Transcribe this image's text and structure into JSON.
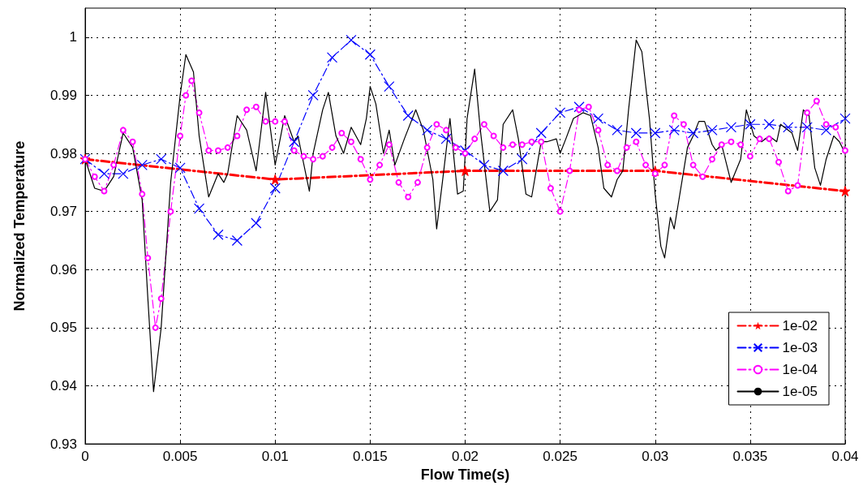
{
  "chart_data": {
    "type": "line",
    "xlabel": "Flow Time(s)",
    "ylabel": "Normalized Temperature",
    "xlim": [
      0,
      0.04
    ],
    "xticks": [
      0,
      0.005,
      0.01,
      0.015,
      0.02,
      0.025,
      0.03,
      0.035,
      0.04
    ],
    "ylim": [
      0.93,
      1.005
    ],
    "yticks": [
      0.93,
      0.94,
      0.95,
      0.96,
      0.97,
      0.98,
      0.99,
      1
    ],
    "grid": true,
    "legend": "bottom right",
    "series": [
      {
        "name": "1e-02",
        "color": "#ff0000",
        "marker": "star",
        "line_style": "dashed",
        "x": [
          0,
          0.01,
          0.02,
          0.03,
          0.04
        ],
        "values": [
          0.979,
          0.9755,
          0.977,
          0.977,
          0.9735
        ]
      },
      {
        "name": "1e-03",
        "color": "#0000ff",
        "marker": "cross",
        "line_style": "dashed",
        "x": [
          0,
          0.001,
          0.002,
          0.003,
          0.004,
          0.005,
          0.006,
          0.007,
          0.008,
          0.009,
          0.01,
          0.011,
          0.012,
          0.013,
          0.014,
          0.015,
          0.016,
          0.017,
          0.018,
          0.019,
          0.02,
          0.021,
          0.022,
          0.023,
          0.024,
          0.025,
          0.026,
          0.027,
          0.028,
          0.029,
          0.03,
          0.031,
          0.032,
          0.033,
          0.034,
          0.035,
          0.036,
          0.037,
          0.038,
          0.039,
          0.04
        ],
        "values": [
          0.979,
          0.9765,
          0.9765,
          0.978,
          0.979,
          0.9775,
          0.9705,
          0.966,
          0.965,
          0.968,
          0.974,
          0.982,
          0.99,
          0.9965,
          0.9995,
          0.997,
          0.9915,
          0.9865,
          0.984,
          0.9825,
          0.9805,
          0.978,
          0.977,
          0.979,
          0.9835,
          0.987,
          0.988,
          0.986,
          0.984,
          0.9835,
          0.9835,
          0.984,
          0.9835,
          0.984,
          0.9845,
          0.985,
          0.985,
          0.9845,
          0.9845,
          0.984,
          0.986
        ]
      },
      {
        "name": "1e-04",
        "color": "#ff00ff",
        "marker": "circle",
        "line_style": "dashed",
        "x": [
          0,
          0.0005,
          0.001,
          0.0015,
          0.002,
          0.0025,
          0.003,
          0.0033,
          0.0037,
          0.004,
          0.0045,
          0.005,
          0.0053,
          0.0056,
          0.006,
          0.0065,
          0.007,
          0.0075,
          0.008,
          0.0085,
          0.009,
          0.0095,
          0.01,
          0.0105,
          0.011,
          0.0115,
          0.012,
          0.0125,
          0.013,
          0.0135,
          0.014,
          0.0145,
          0.015,
          0.0155,
          0.016,
          0.0165,
          0.017,
          0.0175,
          0.018,
          0.0185,
          0.019,
          0.0195,
          0.02,
          0.0205,
          0.021,
          0.0215,
          0.022,
          0.0225,
          0.023,
          0.0235,
          0.024,
          0.0245,
          0.025,
          0.0255,
          0.026,
          0.0265,
          0.027,
          0.0275,
          0.028,
          0.0285,
          0.029,
          0.0295,
          0.03,
          0.0305,
          0.031,
          0.0315,
          0.032,
          0.0325,
          0.033,
          0.0335,
          0.034,
          0.0345,
          0.035,
          0.0355,
          0.036,
          0.0365,
          0.037,
          0.0375,
          0.038,
          0.0385,
          0.039,
          0.0395,
          0.04
        ],
        "values": [
          0.979,
          0.976,
          0.9735,
          0.978,
          0.984,
          0.982,
          0.973,
          0.962,
          0.95,
          0.955,
          0.97,
          0.983,
          0.99,
          0.9925,
          0.987,
          0.9805,
          0.9805,
          0.981,
          0.983,
          0.9875,
          0.988,
          0.9855,
          0.9855,
          0.9855,
          0.9805,
          0.9795,
          0.979,
          0.9795,
          0.981,
          0.9835,
          0.982,
          0.979,
          0.9755,
          0.978,
          0.9815,
          0.975,
          0.9725,
          0.975,
          0.981,
          0.985,
          0.984,
          0.981,
          0.98,
          0.9825,
          0.985,
          0.983,
          0.981,
          0.9815,
          0.9815,
          0.982,
          0.982,
          0.974,
          0.97,
          0.977,
          0.9875,
          0.988,
          0.984,
          0.978,
          0.977,
          0.981,
          0.982,
          0.978,
          0.9765,
          0.978,
          0.9865,
          0.985,
          0.978,
          0.976,
          0.979,
          0.9815,
          0.982,
          0.9815,
          0.9795,
          0.9825,
          0.9825,
          0.9785,
          0.9735,
          0.9745,
          0.987,
          0.989,
          0.985,
          0.9845,
          0.9805
        ]
      },
      {
        "name": "1e-05",
        "color": "#000000",
        "marker": "none",
        "line_style": "solid",
        "x": [
          0,
          0.0005,
          0.001,
          0.0015,
          0.002,
          0.0025,
          0.003,
          0.0033,
          0.0036,
          0.004,
          0.0045,
          0.005,
          0.0053,
          0.0057,
          0.006,
          0.0065,
          0.007,
          0.0073,
          0.0075,
          0.008,
          0.0085,
          0.009,
          0.0095,
          0.01,
          0.0105,
          0.011,
          0.0112,
          0.0118,
          0.012,
          0.0125,
          0.0128,
          0.0132,
          0.0136,
          0.014,
          0.0145,
          0.0148,
          0.015,
          0.0153,
          0.0157,
          0.016,
          0.0163,
          0.0168,
          0.0174,
          0.0178,
          0.0183,
          0.0185,
          0.0188,
          0.0192,
          0.0196,
          0.0199,
          0.0201,
          0.0205,
          0.0208,
          0.0213,
          0.0217,
          0.022,
          0.0225,
          0.0228,
          0.0232,
          0.0235,
          0.024,
          0.0243,
          0.0248,
          0.025,
          0.0253,
          0.0257,
          0.0262,
          0.0266,
          0.027,
          0.0273,
          0.0277,
          0.028,
          0.0283,
          0.0286,
          0.029,
          0.0293,
          0.0297,
          0.03,
          0.0303,
          0.0305,
          0.0308,
          0.031,
          0.0314,
          0.0317,
          0.032,
          0.0323,
          0.0326,
          0.033,
          0.0332,
          0.0335,
          0.034,
          0.0345,
          0.0348,
          0.0352,
          0.0356,
          0.036,
          0.0364,
          0.0366,
          0.0372,
          0.0375,
          0.0378,
          0.0381,
          0.0384,
          0.0387,
          0.039,
          0.0394,
          0.0397,
          0.04
        ],
        "values": [
          0.979,
          0.974,
          0.9735,
          0.976,
          0.9835,
          0.981,
          0.972,
          0.955,
          0.939,
          0.95,
          0.975,
          0.99,
          0.997,
          0.994,
          0.983,
          0.9725,
          0.9765,
          0.975,
          0.9765,
          0.9865,
          0.984,
          0.977,
          0.9905,
          0.978,
          0.9865,
          0.982,
          0.983,
          0.9735,
          0.98,
          0.9875,
          0.9905,
          0.983,
          0.98,
          0.9845,
          0.9815,
          0.986,
          0.9915,
          0.9885,
          0.98,
          0.984,
          0.978,
          0.9825,
          0.9875,
          0.984,
          0.9755,
          0.967,
          0.975,
          0.986,
          0.973,
          0.9735,
          0.986,
          0.9945,
          0.984,
          0.97,
          0.972,
          0.985,
          0.9875,
          0.9825,
          0.973,
          0.9725,
          0.982,
          0.982,
          0.9825,
          0.98,
          0.9825,
          0.986,
          0.987,
          0.9865,
          0.981,
          0.974,
          0.9725,
          0.9755,
          0.977,
          0.9875,
          0.9995,
          0.9975,
          0.986,
          0.973,
          0.964,
          0.962,
          0.969,
          0.967,
          0.975,
          0.981,
          0.983,
          0.9855,
          0.9855,
          0.9815,
          0.9805,
          0.9815,
          0.975,
          0.979,
          0.9875,
          0.983,
          0.982,
          0.983,
          0.982,
          0.985,
          0.9835,
          0.9805,
          0.9875,
          0.9865,
          0.9775,
          0.9745,
          0.979,
          0.983,
          0.982,
          0.98
        ]
      }
    ]
  }
}
